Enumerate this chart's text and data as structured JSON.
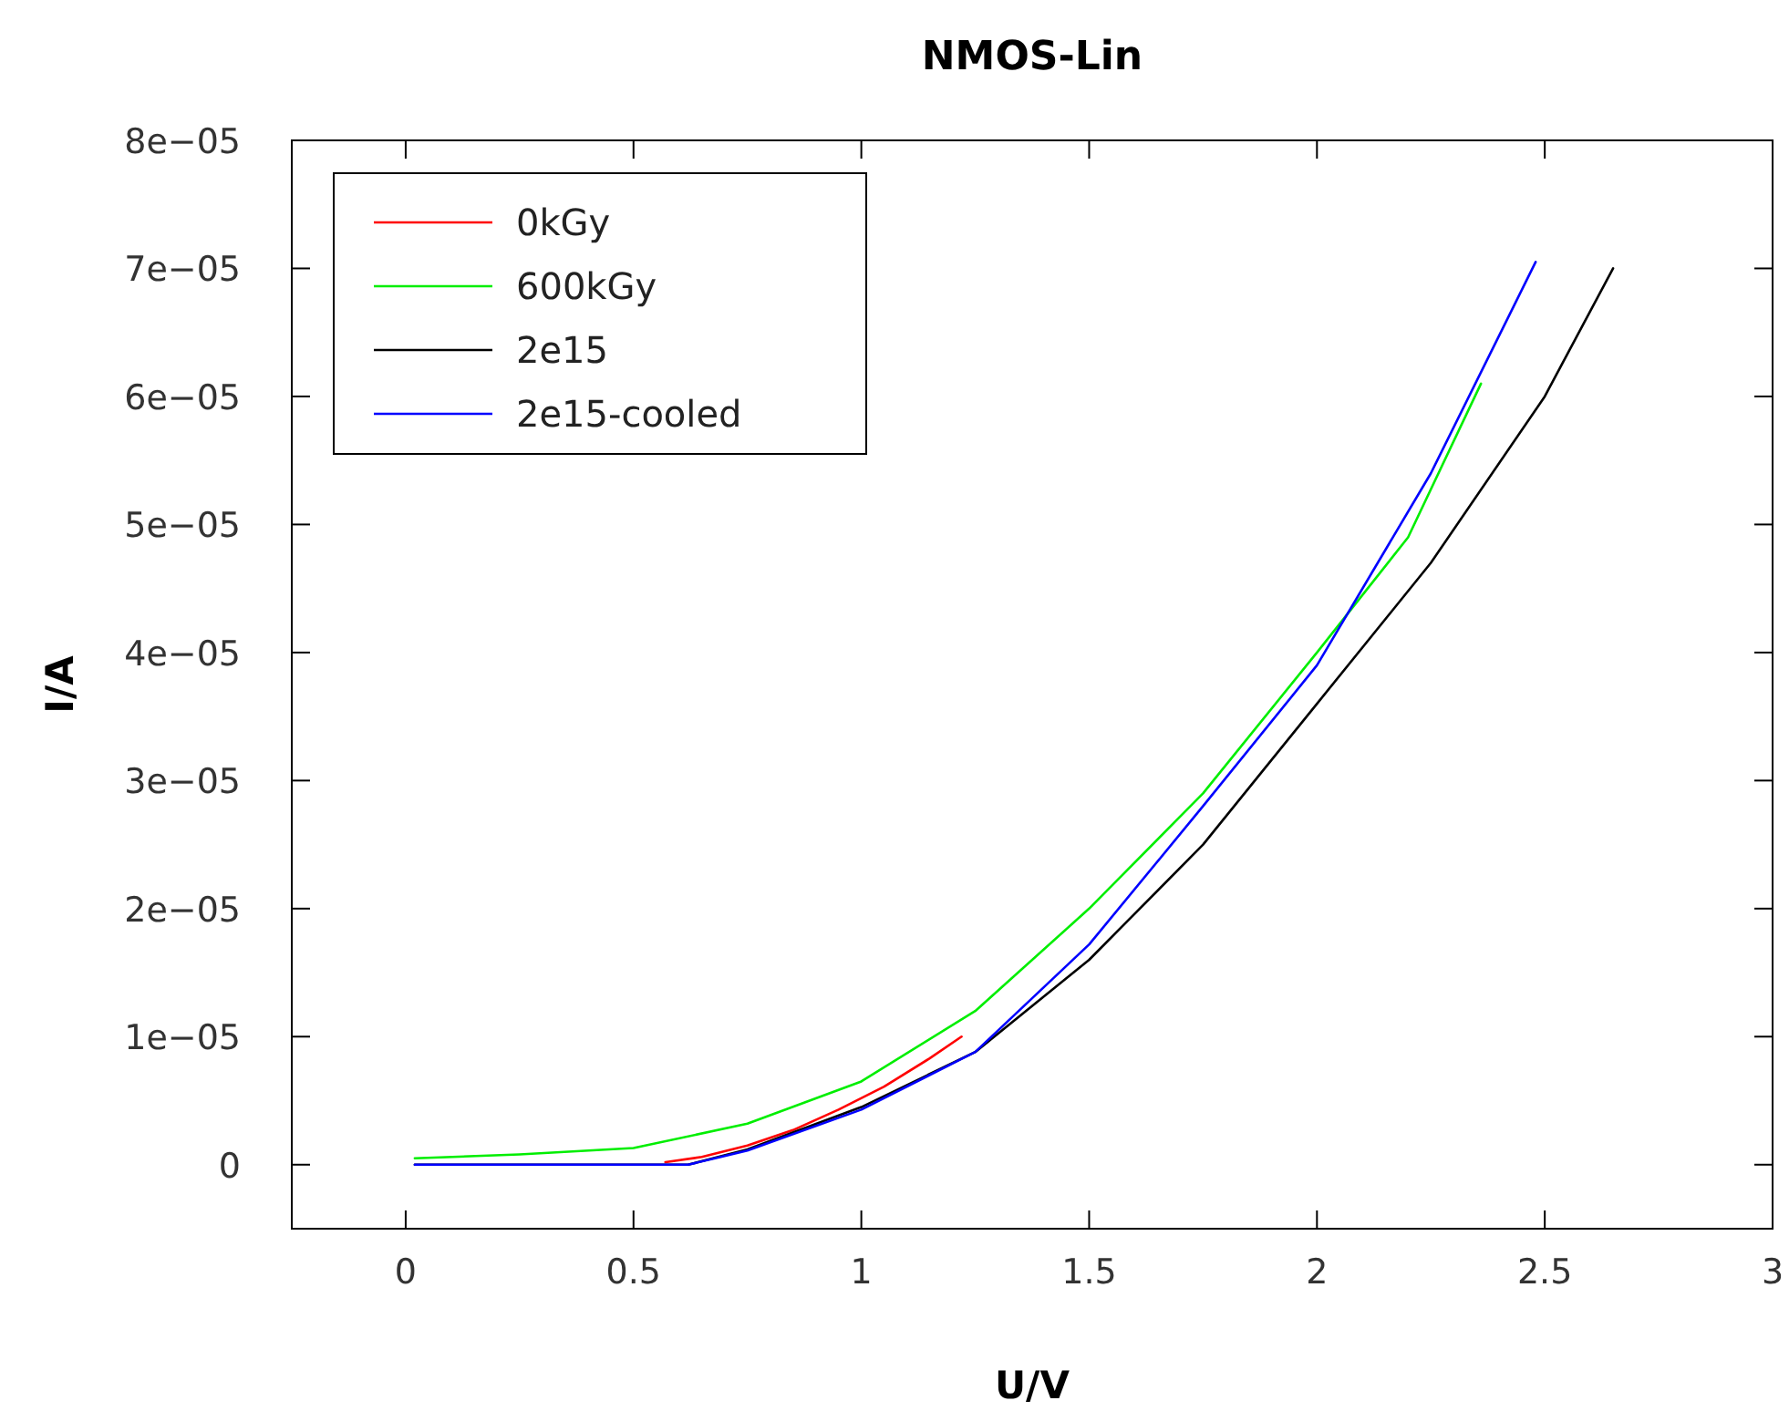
{
  "chart_data": {
    "type": "line",
    "title": "NMOS-Lin",
    "xlabel": "U/V",
    "ylabel": "I/A",
    "xlim": [
      -0.25,
      3
    ],
    "xticks": [
      0,
      0.5,
      1,
      1.5,
      2,
      2.5,
      3
    ],
    "ylim": [
      -5e-06,
      8e-05
    ],
    "yticks": [
      0,
      {
        "value": 1e-05,
        "label": "1e−05"
      },
      {
        "value": 2e-05,
        "label": "2e−05"
      },
      {
        "value": 3e-05,
        "label": "3e−05"
      },
      {
        "value": 4e-05,
        "label": "4e−05"
      },
      {
        "value": 5e-05,
        "label": "5e−05"
      },
      {
        "value": 6e-05,
        "label": "6e−05"
      },
      {
        "value": 7e-05,
        "label": "7e−05"
      },
      {
        "value": 8e-05,
        "label": "8e−05"
      }
    ],
    "grid": false,
    "legend": "top left",
    "marker": "none",
    "line_style": "solid",
    "series": [
      {
        "name": "0kGy",
        "color": "#ff0000",
        "x": [
          0.57,
          0.65,
          0.75,
          0.85,
          0.95,
          1.05,
          1.15,
          1.22
        ],
        "values": [
          2e-07,
          6e-07,
          1.5e-06,
          2.7e-06,
          4.3e-06,
          6.1e-06,
          8.3e-06,
          1e-05
        ]
      },
      {
        "name": "600kGy",
        "color": "#00ee00",
        "x": [
          0.02,
          0.25,
          0.5,
          0.75,
          1,
          1.25,
          1.5,
          1.75,
          2,
          2.2,
          2.36
        ],
        "values": [
          5e-07,
          8e-07,
          1.3e-06,
          3.2e-06,
          6.5e-06,
          1.2e-05,
          2e-05,
          2.9e-05,
          4e-05,
          4.9e-05,
          6.1e-05
        ]
      },
      {
        "name": "2e15",
        "color": "#000000",
        "x": [
          0.02,
          0.3,
          0.62,
          0.75,
          1,
          1.25,
          1.5,
          1.75,
          2,
          2.25,
          2.5,
          2.65
        ],
        "values": [
          0,
          0,
          0,
          1.2e-06,
          4.5e-06,
          8.8e-06,
          1.6e-05,
          2.5e-05,
          3.6e-05,
          4.7e-05,
          6e-05,
          7e-05
        ]
      },
      {
        "name": "2e15-cooled",
        "color": "#0000ff",
        "x": [
          0.02,
          0.3,
          0.62,
          0.75,
          1,
          1.25,
          1.5,
          1.75,
          2,
          2.25,
          2.48
        ],
        "values": [
          0,
          0,
          0,
          1.1e-06,
          4.3e-06,
          8.8e-06,
          1.72e-05,
          2.8e-05,
          3.9e-05,
          5.4e-05,
          7.05e-05
        ]
      }
    ]
  }
}
